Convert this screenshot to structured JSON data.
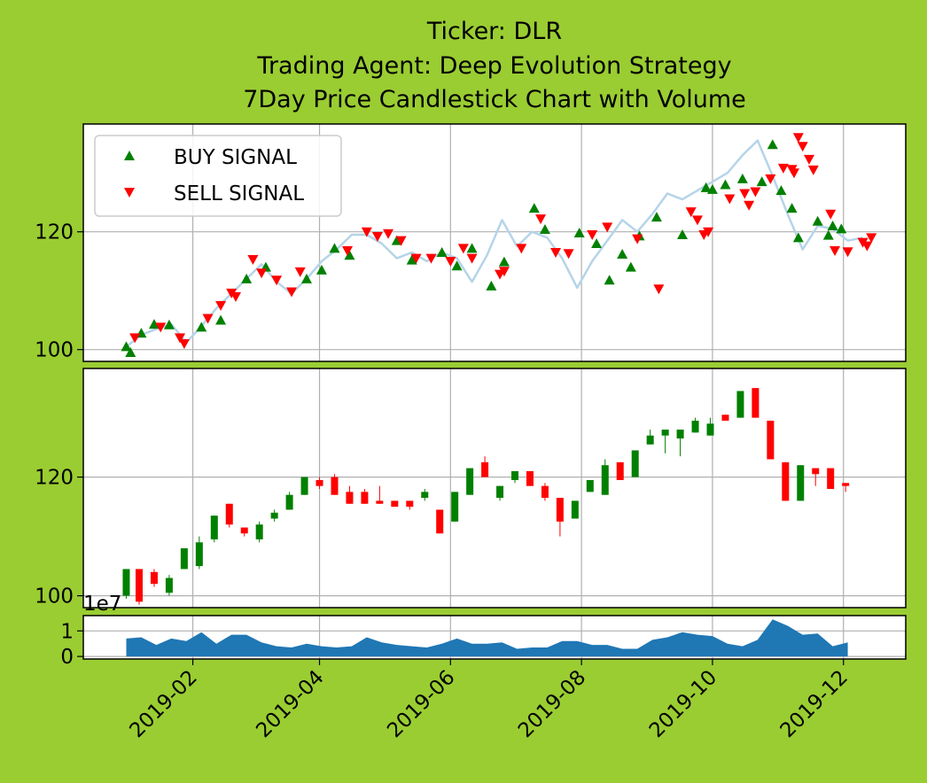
{
  "figure": {
    "background": "#9acd32",
    "title_lines": [
      "Ticker: DLR",
      "Trading Agent: Deep Evolution Strategy",
      "7Day Price Candlestick Chart with Volume"
    ]
  },
  "colors": {
    "buy": "#008000",
    "sell": "#ff0000",
    "up": "#008000",
    "down": "#ff0000",
    "price_line": "#b5d4e8",
    "volume": "#1f77b4",
    "grid": "#b0b0b0"
  },
  "chart_data": [
    {
      "type": "line",
      "name": "price-signals",
      "legend": {
        "position": "top-left",
        "entries": [
          "BUY SIGNAL",
          "SELL SIGNAL"
        ]
      },
      "yticks": [
        100,
        120
      ],
      "ylim": [
        98.0,
        138.3
      ],
      "grid": true,
      "price": [
        [
          "2019-01-01",
          100.5
        ],
        [
          "2019-01-08",
          102.5
        ],
        [
          "2019-01-15",
          103.5
        ],
        [
          "2019-01-22",
          104.3
        ],
        [
          "2019-01-29",
          101.2
        ],
        [
          "2019-02-05",
          104.0
        ],
        [
          "2019-02-12",
          107.0
        ],
        [
          "2019-02-19",
          109.5
        ],
        [
          "2019-02-26",
          112.0
        ],
        [
          "2019-03-05",
          114.5
        ],
        [
          "2019-03-12",
          111.5
        ],
        [
          "2019-03-19",
          109.5
        ],
        [
          "2019-03-26",
          112.0
        ],
        [
          "2019-04-02",
          115.0
        ],
        [
          "2019-04-09",
          117.0
        ],
        [
          "2019-04-16",
          119.5
        ],
        [
          "2019-04-23",
          119.5
        ],
        [
          "2019-04-30",
          118.0
        ],
        [
          "2019-05-07",
          115.5
        ],
        [
          "2019-05-14",
          116.5
        ],
        [
          "2019-05-21",
          115.0
        ],
        [
          "2019-05-28",
          116.5
        ],
        [
          "2019-06-04",
          115.5
        ],
        [
          "2019-06-11",
          111.5
        ],
        [
          "2019-06-18",
          116.0
        ],
        [
          "2019-06-25",
          122.0
        ],
        [
          "2019-07-02",
          117.5
        ],
        [
          "2019-07-09",
          120.0
        ],
        [
          "2019-07-16",
          119.0
        ],
        [
          "2019-07-23",
          115.5
        ],
        [
          "2019-07-30",
          110.5
        ],
        [
          "2019-08-06",
          115.0
        ],
        [
          "2019-08-13",
          118.5
        ],
        [
          "2019-08-20",
          122.0
        ],
        [
          "2019-08-27",
          120.0
        ],
        [
          "2019-09-03",
          123.0
        ],
        [
          "2019-09-10",
          126.5
        ],
        [
          "2019-09-17",
          125.5
        ],
        [
          "2019-09-24",
          127.0
        ],
        [
          "2019-10-01",
          128.5
        ],
        [
          "2019-10-08",
          130.0
        ],
        [
          "2019-10-15",
          133.0
        ],
        [
          "2019-10-22",
          135.5
        ],
        [
          "2019-10-29",
          129.5
        ],
        [
          "2019-11-05",
          123.0
        ],
        [
          "2019-11-12",
          117.0
        ],
        [
          "2019-11-19",
          121.0
        ],
        [
          "2019-11-26",
          120.5
        ],
        [
          "2019-12-03",
          118.5
        ],
        [
          "2019-12-10",
          119.0
        ]
      ],
      "buy_signals": [
        [
          "2019-01-01",
          100.5
        ],
        [
          "2019-01-03",
          99.5
        ],
        [
          "2019-01-08",
          102.8
        ],
        [
          "2019-01-14",
          104.3
        ],
        [
          "2019-01-21",
          104.2
        ],
        [
          "2019-02-05",
          103.8
        ],
        [
          "2019-02-14",
          105.0
        ],
        [
          "2019-02-26",
          112.0
        ],
        [
          "2019-03-07",
          114.0
        ],
        [
          "2019-03-26",
          112.0
        ],
        [
          "2019-04-02",
          113.5
        ],
        [
          "2019-04-08",
          117.2
        ],
        [
          "2019-04-15",
          116.0
        ],
        [
          "2019-05-07",
          118.5
        ],
        [
          "2019-05-14",
          115.2
        ],
        [
          "2019-05-28",
          116.5
        ],
        [
          "2019-06-04",
          114.2
        ],
        [
          "2019-06-11",
          117.2
        ],
        [
          "2019-06-20",
          110.8
        ],
        [
          "2019-06-26",
          114.9
        ],
        [
          "2019-07-10",
          124.0
        ],
        [
          "2019-07-15",
          120.4
        ],
        [
          "2019-07-31",
          119.8
        ],
        [
          "2019-08-08",
          118.0
        ],
        [
          "2019-08-14",
          111.8
        ],
        [
          "2019-08-20",
          116.2
        ],
        [
          "2019-08-24",
          114.0
        ],
        [
          "2019-08-28",
          119.3
        ],
        [
          "2019-09-05",
          122.5
        ],
        [
          "2019-09-17",
          119.5
        ],
        [
          "2019-09-28",
          127.5
        ],
        [
          "2019-10-01",
          127.2
        ],
        [
          "2019-10-07",
          128.0
        ],
        [
          "2019-10-15",
          129.0
        ],
        [
          "2019-10-24",
          128.5
        ],
        [
          "2019-10-29",
          134.8
        ],
        [
          "2019-11-02",
          127.0
        ],
        [
          "2019-11-07",
          124.0
        ],
        [
          "2019-11-10",
          119.0
        ],
        [
          "2019-11-19",
          121.8
        ],
        [
          "2019-11-24",
          119.4
        ],
        [
          "2019-11-26",
          121.0
        ],
        [
          "2019-11-30",
          120.5
        ]
      ],
      "sell_signals": [
        [
          "2019-01-05",
          102.0
        ],
        [
          "2019-01-17",
          103.8
        ],
        [
          "2019-01-26",
          102.0
        ],
        [
          "2019-01-28",
          101.0
        ],
        [
          "2019-02-08",
          105.3
        ],
        [
          "2019-02-14",
          107.5
        ],
        [
          "2019-02-19",
          109.6
        ],
        [
          "2019-02-21",
          109.0
        ],
        [
          "2019-03-01",
          115.3
        ],
        [
          "2019-03-05",
          113.0
        ],
        [
          "2019-03-12",
          111.8
        ],
        [
          "2019-03-19",
          109.8
        ],
        [
          "2019-03-23",
          113.2
        ],
        [
          "2019-04-14",
          116.8
        ],
        [
          "2019-04-23",
          120.0
        ],
        [
          "2019-04-28",
          119.2
        ],
        [
          "2019-05-03",
          119.7
        ],
        [
          "2019-05-09",
          118.5
        ],
        [
          "2019-05-16",
          115.5
        ],
        [
          "2019-05-23",
          115.5
        ],
        [
          "2019-06-01",
          115.0
        ],
        [
          "2019-06-07",
          117.2
        ],
        [
          "2019-06-11",
          115.5
        ],
        [
          "2019-06-24",
          112.8
        ],
        [
          "2019-06-26",
          113.3
        ],
        [
          "2019-07-04",
          117.2
        ],
        [
          "2019-07-13",
          122.2
        ],
        [
          "2019-07-20",
          116.5
        ],
        [
          "2019-07-26",
          116.3
        ],
        [
          "2019-08-06",
          119.5
        ],
        [
          "2019-08-13",
          120.8
        ],
        [
          "2019-08-27",
          118.8
        ],
        [
          "2019-09-06",
          110.3
        ],
        [
          "2019-09-21",
          123.4
        ],
        [
          "2019-09-24",
          122.0
        ],
        [
          "2019-09-27",
          119.5
        ],
        [
          "2019-09-29",
          120.0
        ],
        [
          "2019-10-09",
          125.6
        ],
        [
          "2019-10-16",
          126.5
        ],
        [
          "2019-10-18",
          124.5
        ],
        [
          "2019-10-21",
          126.8
        ],
        [
          "2019-10-28",
          129.0
        ],
        [
          "2019-11-03",
          130.8
        ],
        [
          "2019-11-07",
          130.6
        ],
        [
          "2019-11-08",
          130.0
        ],
        [
          "2019-11-10",
          136.0
        ],
        [
          "2019-11-12",
          134.5
        ],
        [
          "2019-11-15",
          132.3
        ],
        [
          "2019-11-17",
          130.5
        ],
        [
          "2019-11-25",
          123.0
        ],
        [
          "2019-11-27",
          116.8
        ],
        [
          "2019-12-03",
          116.6
        ],
        [
          "2019-12-10",
          118.2
        ],
        [
          "2019-12-12",
          117.6
        ],
        [
          "2019-12-14",
          119.0
        ]
      ]
    },
    {
      "type": "candlestick",
      "name": "weekly-candles",
      "yticks": [
        100,
        120
      ],
      "ylim": [
        98.0,
        138.3
      ],
      "grid": true,
      "candles": [
        [
          "2019-01-01",
          100.0,
          104.5,
          99.5,
          104.5
        ],
        [
          "2019-01-07",
          104.5,
          99.0,
          98.5,
          104.5
        ],
        [
          "2019-01-14",
          104.0,
          102.0,
          101.5,
          104.5
        ],
        [
          "2019-01-21",
          100.5,
          103.0,
          100.0,
          103.5
        ],
        [
          "2019-01-28",
          104.5,
          108.0,
          104.5,
          108.0
        ],
        [
          "2019-02-04",
          105.0,
          109.0,
          104.5,
          110.0
        ],
        [
          "2019-02-11",
          109.5,
          113.5,
          109.0,
          113.5
        ],
        [
          "2019-02-18",
          115.5,
          112.0,
          111.5,
          115.5
        ],
        [
          "2019-02-25",
          111.5,
          110.5,
          110.0,
          111.5
        ],
        [
          "2019-03-04",
          109.5,
          112.0,
          109.0,
          112.5
        ],
        [
          "2019-03-11",
          113.0,
          114.0,
          112.5,
          114.5
        ],
        [
          "2019-03-18",
          114.5,
          117.0,
          114.5,
          117.5
        ],
        [
          "2019-03-25",
          117.0,
          120.0,
          117.0,
          120.0
        ],
        [
          "2019-04-01",
          119.5,
          118.5,
          118.0,
          120.0
        ],
        [
          "2019-04-08",
          120.0,
          117.0,
          117.0,
          120.5
        ],
        [
          "2019-04-15",
          117.5,
          115.5,
          115.5,
          118.5
        ],
        [
          "2019-04-22",
          117.5,
          115.5,
          115.5,
          118.0
        ],
        [
          "2019-04-29",
          116.0,
          115.5,
          115.5,
          118.5
        ],
        [
          "2019-05-06",
          116.0,
          115.0,
          115.0,
          116.0
        ],
        [
          "2019-05-13",
          116.0,
          115.0,
          114.5,
          116.0
        ],
        [
          "2019-05-20",
          116.5,
          117.5,
          116.0,
          118.0
        ],
        [
          "2019-05-27",
          114.5,
          110.5,
          110.5,
          114.5
        ],
        [
          "2019-06-03",
          112.5,
          117.5,
          112.5,
          117.5
        ],
        [
          "2019-06-10",
          117.0,
          121.5,
          117.0,
          121.5
        ],
        [
          "2019-06-17",
          122.5,
          120.0,
          120.0,
          123.5
        ],
        [
          "2019-06-24",
          116.5,
          118.5,
          116.0,
          118.5
        ],
        [
          "2019-07-01",
          119.5,
          121.0,
          119.0,
          121.0
        ],
        [
          "2019-07-08",
          121.0,
          118.5,
          118.5,
          121.0
        ],
        [
          "2019-07-15",
          118.5,
          116.5,
          116.0,
          119.0
        ],
        [
          "2019-07-22",
          116.5,
          112.5,
          110.0,
          116.5
        ],
        [
          "2019-07-29",
          113.0,
          116.0,
          113.0,
          116.0
        ],
        [
          "2019-08-05",
          117.5,
          119.5,
          117.5,
          119.5
        ],
        [
          "2019-08-12",
          117.0,
          122.0,
          117.0,
          123.0
        ],
        [
          "2019-08-19",
          122.5,
          119.5,
          119.5,
          122.5
        ],
        [
          "2019-08-26",
          120.0,
          124.5,
          120.0,
          124.5
        ],
        [
          "2019-09-02",
          125.5,
          127.0,
          125.5,
          128.0
        ],
        [
          "2019-09-09",
          127.0,
          128.0,
          124.0,
          128.0
        ],
        [
          "2019-09-16",
          126.5,
          128.0,
          123.5,
          128.0
        ],
        [
          "2019-09-23",
          127.5,
          129.5,
          127.5,
          130.0
        ],
        [
          "2019-09-30",
          127.0,
          129.0,
          127.0,
          130.0
        ],
        [
          "2019-10-07",
          130.5,
          129.5,
          129.5,
          130.5
        ],
        [
          "2019-10-14",
          130.0,
          134.5,
          130.0,
          134.5
        ],
        [
          "2019-10-21",
          135.0,
          130.0,
          130.0,
          135.0
        ],
        [
          "2019-10-28",
          129.5,
          123.0,
          123.0,
          129.5
        ],
        [
          "2019-11-04",
          122.5,
          116.0,
          116.0,
          122.5
        ],
        [
          "2019-11-11",
          116.0,
          122.0,
          116.0,
          122.0
        ],
        [
          "2019-11-18",
          121.5,
          120.5,
          118.5,
          121.5
        ],
        [
          "2019-11-25",
          121.5,
          118.0,
          118.0,
          121.5
        ],
        [
          "2019-12-02",
          119.0,
          118.5,
          117.5,
          119.0
        ]
      ]
    },
    {
      "type": "area",
      "name": "volume",
      "offset_label": "1e7",
      "yticks": [
        0,
        1
      ],
      "ylim": [
        -0.1,
        1.6
      ],
      "grid": true,
      "values": [
        [
          "2019-01-01",
          0.7
        ],
        [
          "2019-01-08",
          0.75
        ],
        [
          "2019-01-15",
          0.45
        ],
        [
          "2019-01-22",
          0.7
        ],
        [
          "2019-01-29",
          0.6
        ],
        [
          "2019-02-05",
          0.95
        ],
        [
          "2019-02-12",
          0.5
        ],
        [
          "2019-02-19",
          0.85
        ],
        [
          "2019-02-26",
          0.85
        ],
        [
          "2019-03-05",
          0.55
        ],
        [
          "2019-03-12",
          0.4
        ],
        [
          "2019-03-19",
          0.35
        ],
        [
          "2019-03-26",
          0.5
        ],
        [
          "2019-04-02",
          0.4
        ],
        [
          "2019-04-09",
          0.35
        ],
        [
          "2019-04-16",
          0.4
        ],
        [
          "2019-04-23",
          0.75
        ],
        [
          "2019-04-30",
          0.55
        ],
        [
          "2019-05-07",
          0.45
        ],
        [
          "2019-05-14",
          0.4
        ],
        [
          "2019-05-21",
          0.35
        ],
        [
          "2019-05-28",
          0.5
        ],
        [
          "2019-06-04",
          0.7
        ],
        [
          "2019-06-11",
          0.5
        ],
        [
          "2019-06-18",
          0.5
        ],
        [
          "2019-06-25",
          0.55
        ],
        [
          "2019-07-02",
          0.3
        ],
        [
          "2019-07-09",
          0.35
        ],
        [
          "2019-07-16",
          0.35
        ],
        [
          "2019-07-23",
          0.6
        ],
        [
          "2019-07-30",
          0.6
        ],
        [
          "2019-08-06",
          0.45
        ],
        [
          "2019-08-13",
          0.45
        ],
        [
          "2019-08-20",
          0.3
        ],
        [
          "2019-08-27",
          0.3
        ],
        [
          "2019-09-03",
          0.65
        ],
        [
          "2019-09-10",
          0.75
        ],
        [
          "2019-09-17",
          0.95
        ],
        [
          "2019-09-24",
          0.85
        ],
        [
          "2019-10-01",
          0.8
        ],
        [
          "2019-10-08",
          0.5
        ],
        [
          "2019-10-15",
          0.4
        ],
        [
          "2019-10-22",
          0.65
        ],
        [
          "2019-10-29",
          1.45
        ],
        [
          "2019-11-05",
          1.2
        ],
        [
          "2019-11-12",
          0.85
        ],
        [
          "2019-11-19",
          0.9
        ],
        [
          "2019-11-26",
          0.4
        ],
        [
          "2019-12-03",
          0.55
        ]
      ]
    }
  ],
  "xaxis": {
    "ticks": [
      [
        "2019-02-01",
        "2019-02"
      ],
      [
        "2019-04-01",
        "2019-04"
      ],
      [
        "2019-06-01",
        "2019-06"
      ],
      [
        "2019-08-01",
        "2019-08"
      ],
      [
        "2019-10-01",
        "2019-10"
      ],
      [
        "2019-12-01",
        "2019-12"
      ]
    ],
    "xlim": [
      "2018-12-12",
      "2019-12-30"
    ]
  }
}
